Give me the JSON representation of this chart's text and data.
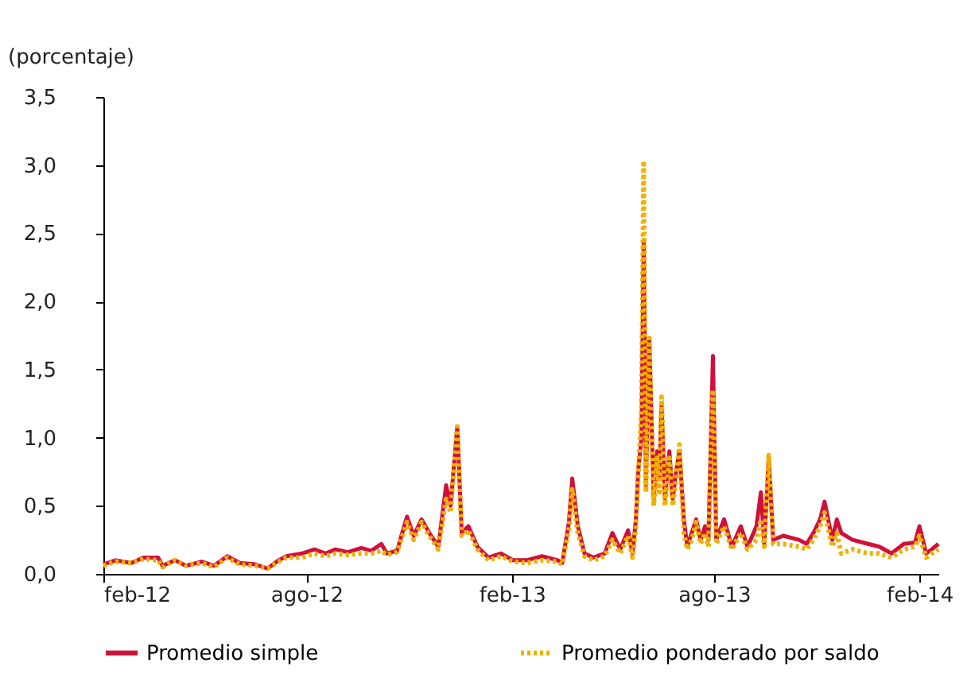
{
  "chart_data": {
    "type": "line",
    "ylabel": "(porcentaje)",
    "x": [
      "2012-02-01",
      "2012-02-12",
      "2012-02-26",
      "2012-03-08",
      "2012-03-21",
      "2012-03-25",
      "2012-04-05",
      "2012-04-15",
      "2012-04-29",
      "2012-05-10",
      "2012-05-22",
      "2012-06-02",
      "2012-06-16",
      "2012-06-27",
      "2012-07-07",
      "2012-07-14",
      "2012-07-28",
      "2012-08-08",
      "2012-08-18",
      "2012-08-27",
      "2012-09-07",
      "2012-09-19",
      "2012-09-28",
      "2012-10-07",
      "2012-10-12",
      "2012-10-21",
      "2012-10-30",
      "2012-11-05",
      "2012-11-12",
      "2012-11-19",
      "2012-11-27",
      "2012-12-04",
      "2012-12-08",
      "2012-12-14",
      "2012-12-18",
      "2012-12-24",
      "2013-01-01",
      "2013-01-11",
      "2013-01-22",
      "2013-02-02",
      "2013-02-14",
      "2013-02-28",
      "2013-03-14",
      "2013-03-18",
      "2013-03-24",
      "2013-03-27",
      "2013-04-01",
      "2013-04-07",
      "2013-04-15",
      "2013-04-25",
      "2013-05-02",
      "2013-05-09",
      "2013-05-16",
      "2013-05-20",
      "2013-05-23",
      "2013-05-25",
      "2013-05-28",
      "2013-05-30",
      "2013-06-01",
      "2013-06-04",
      "2013-06-08",
      "2013-06-11",
      "2013-06-13",
      "2013-06-15",
      "2013-06-18",
      "2013-06-22",
      "2013-06-25",
      "2013-06-28",
      "2013-07-01",
      "2013-07-05",
      "2013-07-08",
      "2013-07-12",
      "2013-07-16",
      "2013-07-20",
      "2013-07-24",
      "2013-07-27",
      "2013-07-31",
      "2013-08-03",
      "2013-08-10",
      "2013-08-17",
      "2013-08-25",
      "2013-08-31",
      "2013-09-08",
      "2013-09-12",
      "2013-09-15",
      "2013-09-19",
      "2013-09-23",
      "2013-10-02",
      "2013-10-16",
      "2013-10-23",
      "2013-10-29",
      "2013-11-04",
      "2013-11-08",
      "2013-11-15",
      "2013-11-19",
      "2013-11-23",
      "2013-12-03",
      "2013-12-17",
      "2013-12-27",
      "2014-01-07",
      "2014-01-18",
      "2014-01-28",
      "2014-02-01",
      "2014-02-07",
      "2014-02-12",
      "2014-02-18"
    ],
    "series": [
      {
        "name": "Promedio simple",
        "color": "#d0103a",
        "line_style": "solid",
        "values": [
          0.07,
          0.1,
          0.08,
          0.12,
          0.12,
          0.06,
          0.1,
          0.06,
          0.09,
          0.06,
          0.13,
          0.08,
          0.07,
          0.04,
          0.1,
          0.13,
          0.15,
          0.18,
          0.15,
          0.18,
          0.16,
          0.19,
          0.17,
          0.22,
          0.15,
          0.17,
          0.42,
          0.28,
          0.4,
          0.3,
          0.2,
          0.65,
          0.5,
          1.08,
          0.3,
          0.35,
          0.2,
          0.12,
          0.15,
          0.1,
          0.1,
          0.13,
          0.1,
          0.08,
          0.38,
          0.7,
          0.35,
          0.15,
          0.12,
          0.15,
          0.3,
          0.18,
          0.32,
          0.15,
          0.4,
          0.75,
          1.0,
          2.45,
          0.65,
          1.72,
          0.55,
          0.9,
          0.7,
          1.25,
          0.55,
          0.9,
          0.55,
          0.75,
          0.9,
          0.4,
          0.2,
          0.3,
          0.4,
          0.25,
          0.35,
          0.25,
          1.6,
          0.25,
          0.4,
          0.2,
          0.35,
          0.2,
          0.35,
          0.6,
          0.22,
          0.85,
          0.25,
          0.28,
          0.25,
          0.22,
          0.3,
          0.4,
          0.53,
          0.25,
          0.4,
          0.3,
          0.25,
          0.22,
          0.2,
          0.15,
          0.22,
          0.23,
          0.35,
          0.15,
          0.18,
          0.22
        ]
      },
      {
        "name": "Promedio ponderado por saldo",
        "color": "#f0b000",
        "line_style": "dotted",
        "values": [
          0.06,
          0.09,
          0.08,
          0.11,
          0.1,
          0.05,
          0.1,
          0.06,
          0.08,
          0.05,
          0.12,
          0.07,
          0.06,
          0.04,
          0.09,
          0.12,
          0.12,
          0.15,
          0.13,
          0.15,
          0.14,
          0.15,
          0.15,
          0.17,
          0.14,
          0.16,
          0.38,
          0.25,
          0.38,
          0.28,
          0.18,
          0.55,
          0.45,
          1.08,
          0.28,
          0.32,
          0.18,
          0.1,
          0.13,
          0.09,
          0.08,
          0.1,
          0.09,
          0.07,
          0.33,
          0.62,
          0.3,
          0.13,
          0.1,
          0.13,
          0.25,
          0.15,
          0.28,
          0.12,
          0.35,
          0.7,
          1.2,
          3.03,
          0.6,
          1.73,
          0.5,
          0.85,
          0.6,
          1.3,
          0.5,
          0.85,
          0.5,
          0.7,
          0.95,
          0.3,
          0.18,
          0.25,
          0.38,
          0.22,
          0.3,
          0.2,
          1.35,
          0.22,
          0.35,
          0.18,
          0.3,
          0.18,
          0.25,
          0.4,
          0.2,
          0.87,
          0.22,
          0.22,
          0.2,
          0.18,
          0.25,
          0.35,
          0.45,
          0.2,
          0.3,
          0.15,
          0.18,
          0.15,
          0.15,
          0.12,
          0.18,
          0.2,
          0.28,
          0.12,
          0.15,
          0.18
        ]
      }
    ],
    "xlim": [
      "2012-02-01",
      "2014-02-18"
    ],
    "xticks": [
      {
        "value": "2012-02-01",
        "label": "feb-12"
      },
      {
        "value": "2012-08-01",
        "label": "ago-12"
      },
      {
        "value": "2013-02-01",
        "label": "feb-13"
      },
      {
        "value": "2013-08-01",
        "label": "ago-13"
      },
      {
        "value": "2014-02-01",
        "label": "feb-14"
      }
    ],
    "ylim": [
      0,
      3.5
    ],
    "yticks": [
      {
        "value": 0,
        "label": "0,0"
      },
      {
        "value": 0.5,
        "label": "0,5"
      },
      {
        "value": 1,
        "label": "1,0"
      },
      {
        "value": 1.5,
        "label": "1,5"
      },
      {
        "value": 2,
        "label": "2,0"
      },
      {
        "value": 2.5,
        "label": "2,5"
      },
      {
        "value": 3,
        "label": "3,0"
      },
      {
        "value": 3.5,
        "label": "3,5"
      }
    ],
    "grid": false,
    "legend": "bottom"
  }
}
